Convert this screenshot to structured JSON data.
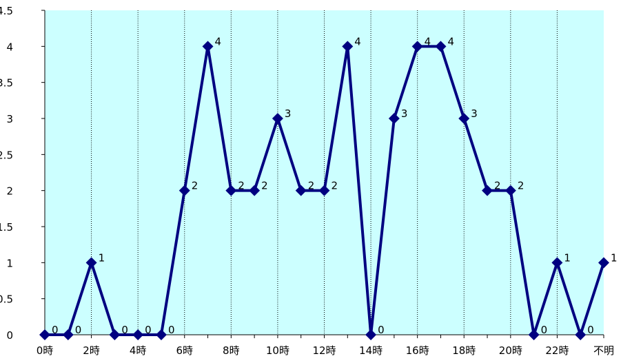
{
  "chart_data": {
    "type": "line",
    "categories": [
      "0時",
      "",
      "2時",
      "",
      "4時",
      "",
      "6時",
      "",
      "8時",
      "",
      "10時",
      "",
      "12時",
      "",
      "14時",
      "",
      "16時",
      "",
      "18時",
      "",
      "20時",
      "",
      "22時",
      "",
      "不明"
    ],
    "series": [
      {
        "values": [
          0,
          0,
          1,
          0,
          0,
          0,
          2,
          4,
          2,
          2,
          3,
          2,
          2,
          4,
          0,
          3,
          4,
          4,
          3,
          2,
          2,
          0,
          1,
          0,
          1
        ],
        "data_labels": [
          "0",
          "0",
          "1",
          "0",
          "0",
          "0",
          "2",
          "4",
          "2",
          "2",
          "3",
          "2",
          "2",
          "4",
          "0",
          "3",
          "4",
          "4",
          "3",
          "2",
          "2",
          "0",
          "1",
          "0",
          "1"
        ]
      }
    ],
    "yticks": [
      "0",
      "0.5",
      "1",
      "1.5",
      "2",
      "2.5",
      "3",
      "3.5",
      "4",
      "4.5"
    ],
    "ylim": [
      0,
      4.5
    ],
    "title": "",
    "xlabel": "",
    "ylabel": "",
    "grid": true,
    "legend": "none"
  },
  "colors": {
    "plot_background": "#ccffff",
    "series_line": "#000080",
    "grid_line": "#000000"
  }
}
